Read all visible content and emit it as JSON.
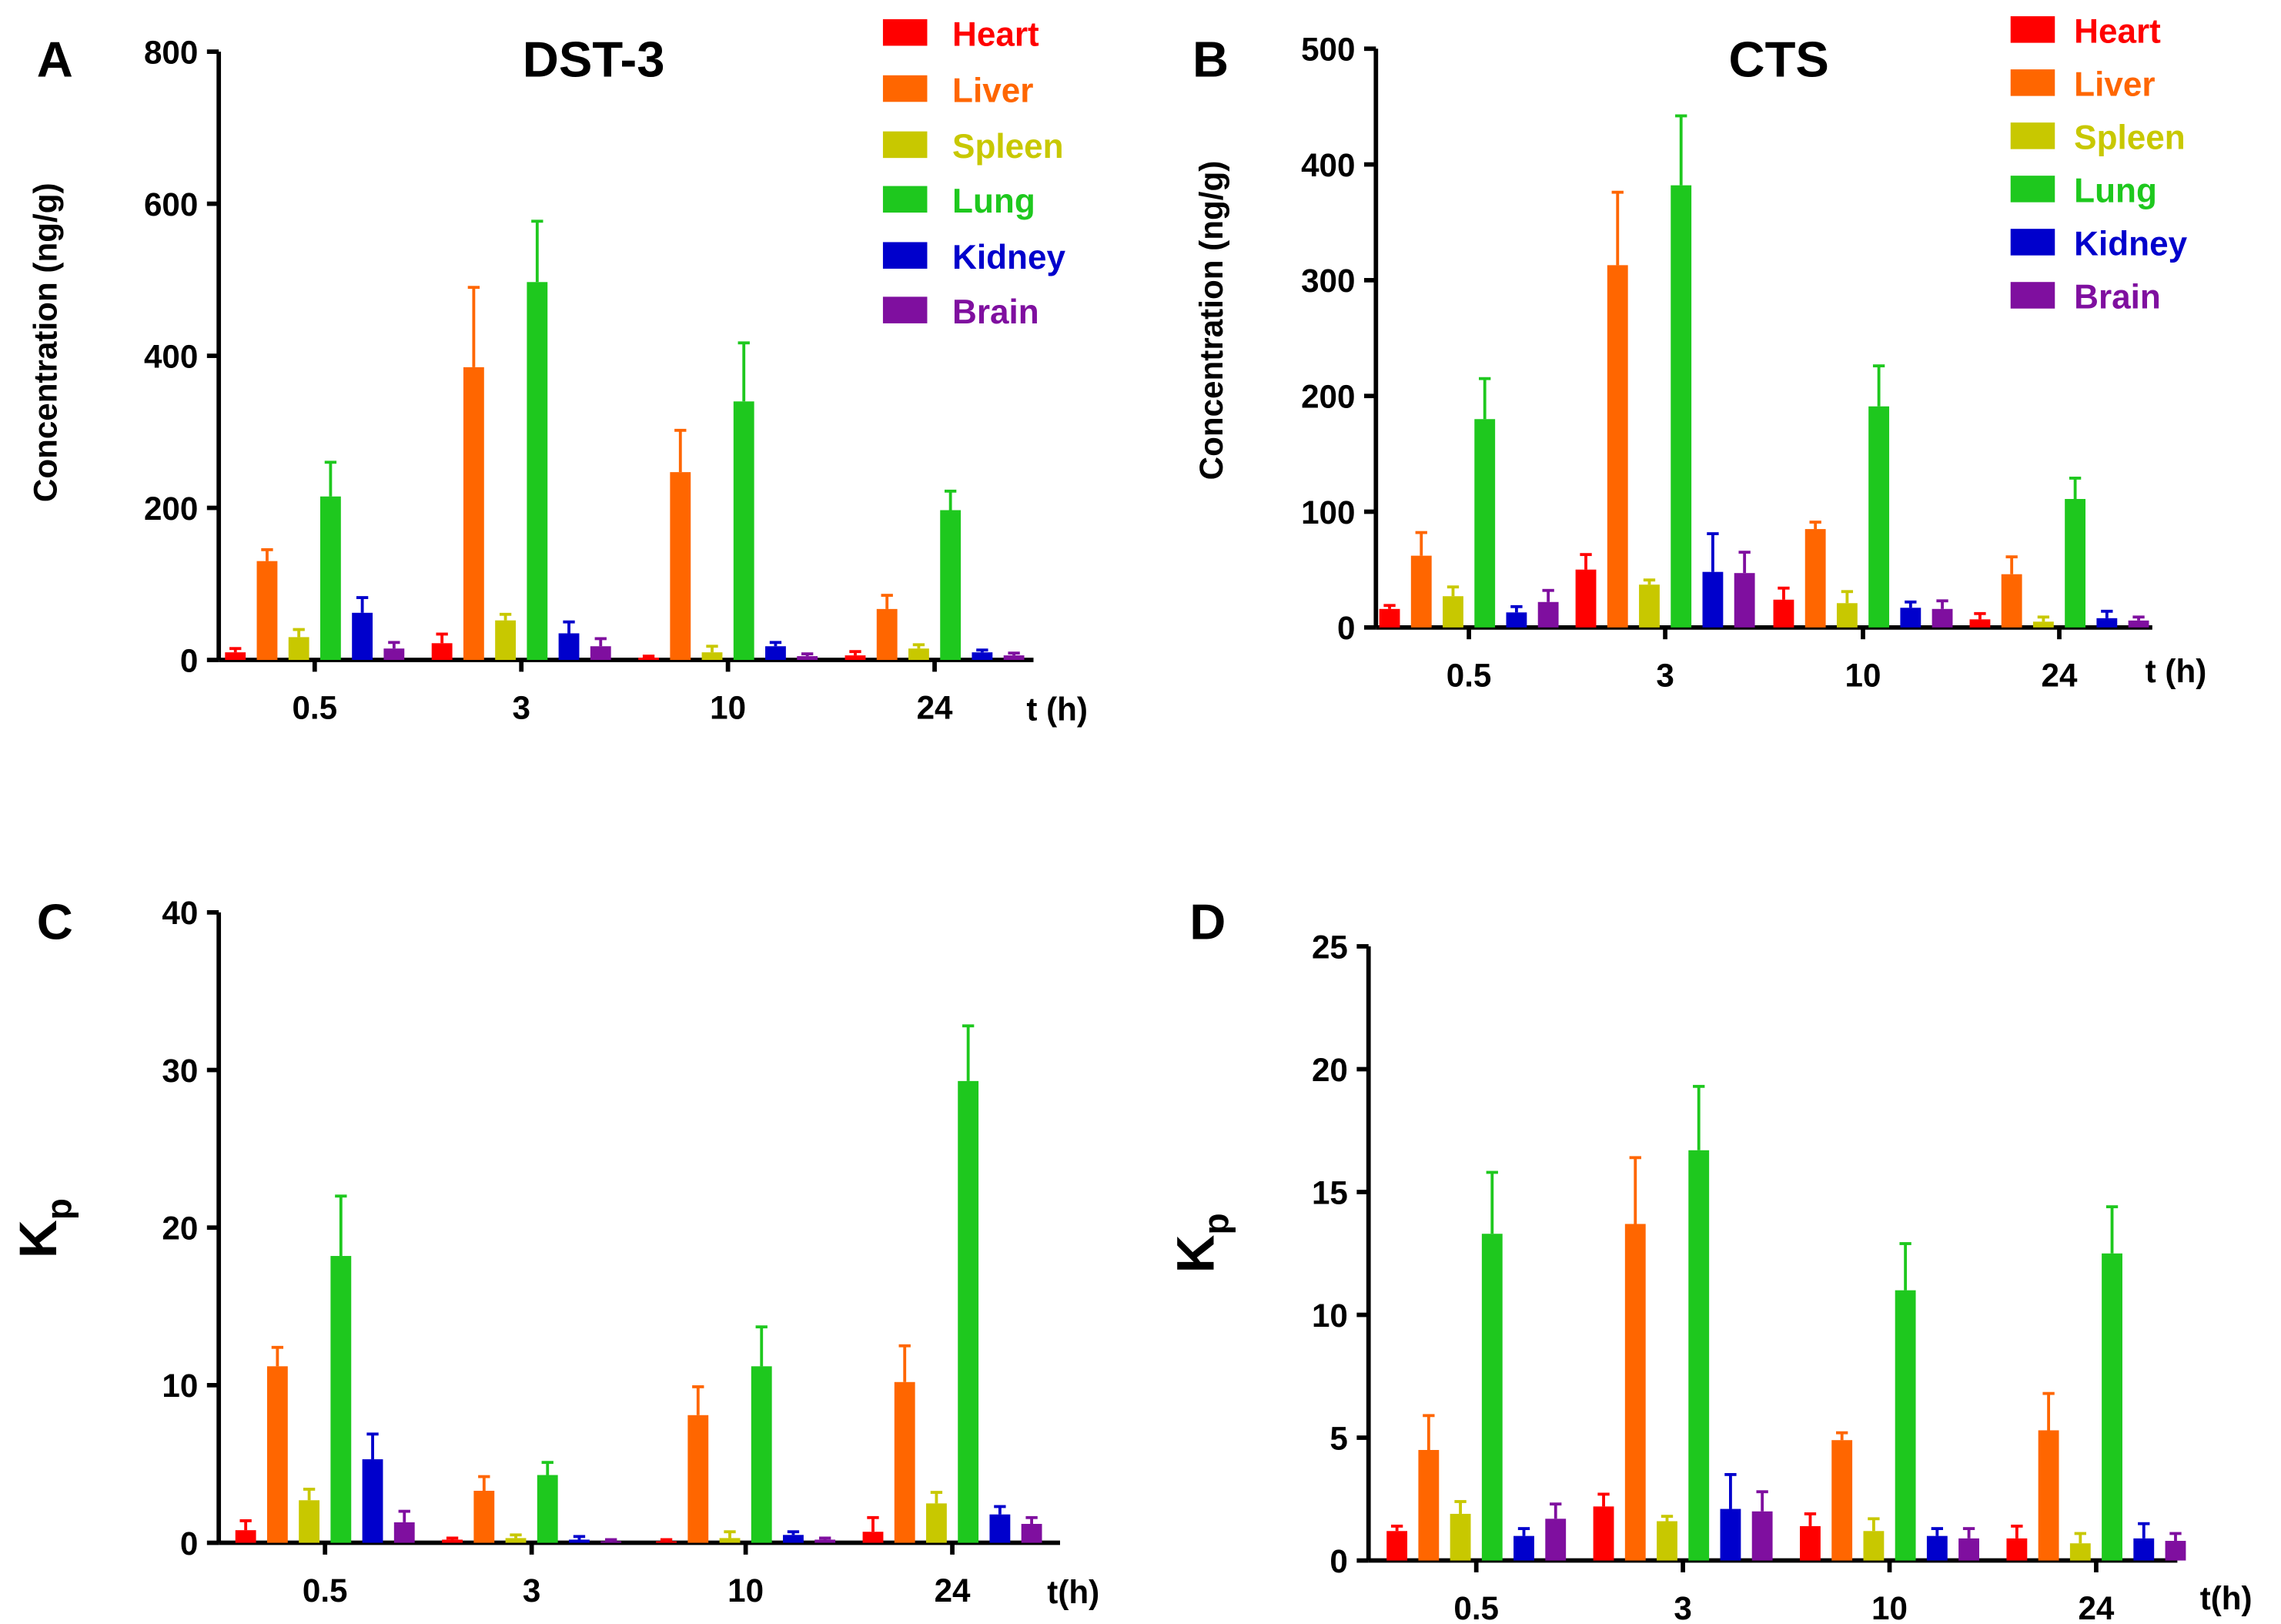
{
  "colors": {
    "Heart": "#ff0000",
    "Liver": "#ff6600",
    "Spleen": "#c8c800",
    "Lung": "#1ec81e",
    "Kidney": "#0000cc",
    "Brain": "#7f0f9f"
  },
  "chart_data": [
    {
      "type": "bar",
      "panel": "A",
      "title": "DST-3",
      "ylabel": "Concentration (ng/g)",
      "xlabel": "t (h)",
      "categories": [
        "0.5",
        "3",
        "10",
        "24"
      ],
      "ylim": [
        0,
        800
      ],
      "yticks": [
        "0",
        "200",
        "400",
        "600",
        "800"
      ],
      "legend_position": "top-right",
      "series": [
        {
          "name": "Heart",
          "values": [
            10,
            22,
            3,
            6
          ],
          "errors": [
            5,
            12,
            2,
            5
          ]
        },
        {
          "name": "Liver",
          "values": [
            130,
            385,
            247,
            67
          ],
          "errors": [
            15,
            105,
            55,
            18
          ]
        },
        {
          "name": "Spleen",
          "values": [
            30,
            52,
            10,
            15
          ],
          "errors": [
            10,
            8,
            8,
            5
          ]
        },
        {
          "name": "Lung",
          "values": [
            215,
            497,
            340,
            197
          ],
          "errors": [
            45,
            80,
            77,
            25
          ]
        },
        {
          "name": "Kidney",
          "values": [
            62,
            35,
            18,
            10
          ],
          "errors": [
            20,
            15,
            5,
            3
          ]
        },
        {
          "name": "Brain",
          "values": [
            15,
            18,
            5,
            6
          ],
          "errors": [
            8,
            10,
            3,
            3
          ]
        }
      ]
    },
    {
      "type": "bar",
      "panel": "B",
      "title": "CTS",
      "ylabel": "Concentration (ng/g)",
      "xlabel": "t (h)",
      "categories": [
        "0.5",
        "3",
        "10",
        "24"
      ],
      "ylim": [
        0,
        500
      ],
      "yticks": [
        "0",
        "100",
        "200",
        "300",
        "400",
        "500"
      ],
      "legend_position": "top-right",
      "series": [
        {
          "name": "Heart",
          "values": [
            16,
            50,
            24,
            7
          ],
          "errors": [
            3,
            13,
            10,
            5
          ]
        },
        {
          "name": "Liver",
          "values": [
            62,
            313,
            85,
            46
          ],
          "errors": [
            20,
            63,
            6,
            15
          ]
        },
        {
          "name": "Spleen",
          "values": [
            27,
            37,
            21,
            5
          ],
          "errors": [
            8,
            4,
            10,
            4
          ]
        },
        {
          "name": "Lung",
          "values": [
            180,
            382,
            191,
            111
          ],
          "errors": [
            35,
            60,
            35,
            18
          ]
        },
        {
          "name": "Kidney",
          "values": [
            13,
            48,
            17,
            8
          ],
          "errors": [
            5,
            33,
            5,
            6
          ]
        },
        {
          "name": "Brain",
          "values": [
            22,
            47,
            16,
            6
          ],
          "errors": [
            10,
            18,
            7,
            3
          ]
        }
      ]
    },
    {
      "type": "bar",
      "panel": "C",
      "title": "",
      "ylabel": "K",
      "ylabel_sub": "p",
      "xlabel": "t(h)",
      "categories": [
        "0.5",
        "3",
        "10",
        "24"
      ],
      "ylim": [
        0,
        40
      ],
      "yticks": [
        "0",
        "10",
        "20",
        "30",
        "40"
      ],
      "series": [
        {
          "name": "Heart",
          "values": [
            0.8,
            0.2,
            0.1,
            0.7
          ],
          "errors": [
            0.6,
            0.1,
            0.1,
            0.9
          ]
        },
        {
          "name": "Liver",
          "values": [
            11.2,
            3.3,
            8.1,
            10.2
          ],
          "errors": [
            1.2,
            0.9,
            1.8,
            2.3
          ]
        },
        {
          "name": "Spleen",
          "values": [
            2.7,
            0.3,
            0.3,
            2.5
          ],
          "errors": [
            0.7,
            0.2,
            0.4,
            0.7
          ]
        },
        {
          "name": "Lung",
          "values": [
            18.2,
            4.3,
            11.2,
            29.3
          ],
          "errors": [
            3.8,
            0.8,
            2.5,
            3.5
          ]
        },
        {
          "name": "Kidney",
          "values": [
            5.3,
            0.2,
            0.5,
            1.8
          ],
          "errors": [
            1.6,
            0.2,
            0.2,
            0.5
          ]
        },
        {
          "name": "Brain",
          "values": [
            1.3,
            0.1,
            0.2,
            1.2
          ],
          "errors": [
            0.7,
            0.1,
            0.1,
            0.4
          ]
        }
      ]
    },
    {
      "type": "bar",
      "panel": "D",
      "title": "",
      "ylabel": "K",
      "ylabel_sub": "p",
      "xlabel": "t(h)",
      "categories": [
        "0.5",
        "3",
        "10",
        "24"
      ],
      "ylim": [
        0,
        25
      ],
      "yticks": [
        "0",
        "5",
        "10",
        "15",
        "20",
        "25"
      ],
      "series": [
        {
          "name": "Heart",
          "values": [
            1.2,
            2.2,
            1.4,
            0.9
          ],
          "errors": [
            0.2,
            0.5,
            0.5,
            0.5
          ]
        },
        {
          "name": "Liver",
          "values": [
            4.5,
            13.7,
            4.9,
            5.3
          ],
          "errors": [
            1.4,
            2.7,
            0.3,
            1.5
          ]
        },
        {
          "name": "Spleen",
          "values": [
            1.9,
            1.6,
            1.2,
            0.7
          ],
          "errors": [
            0.5,
            0.2,
            0.5,
            0.4
          ]
        },
        {
          "name": "Lung",
          "values": [
            13.3,
            16.7,
            11.0,
            12.5
          ],
          "errors": [
            2.5,
            2.6,
            1.9,
            1.9
          ]
        },
        {
          "name": "Kidney",
          "values": [
            1.0,
            2.1,
            1.0,
            0.9
          ],
          "errors": [
            0.3,
            1.4,
            0.3,
            0.6
          ]
        },
        {
          "name": "Brain",
          "values": [
            1.7,
            2.0,
            0.9,
            0.8
          ],
          "errors": [
            0.6,
            0.8,
            0.4,
            0.3
          ]
        }
      ]
    }
  ]
}
